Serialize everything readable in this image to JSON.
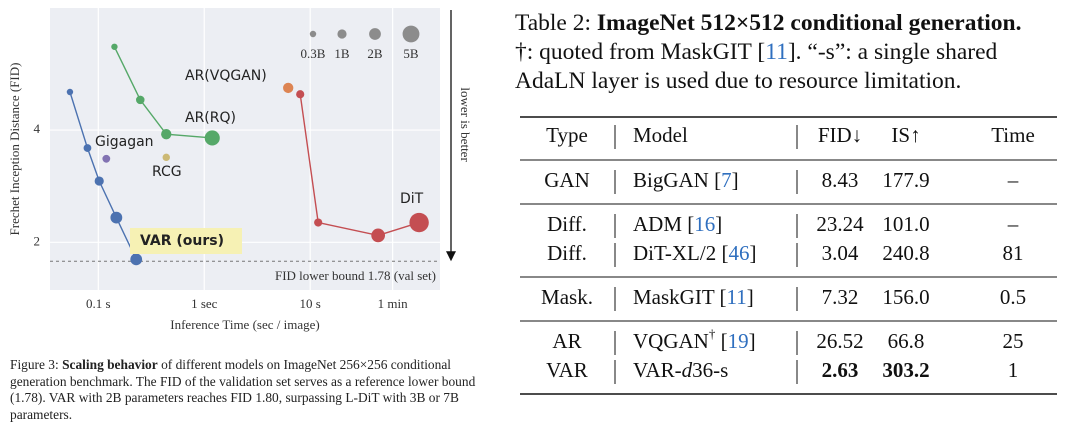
{
  "chart_data": {
    "type": "bubble",
    "x_label": "Inference Time (sec / image)",
    "y_label": "Frechet Inception Distance (FID)",
    "xscale": "log",
    "yscale": "log",
    "xlim": [
      0.035,
      168
    ],
    "ylim": [
      1.49,
      8.5
    ],
    "xticks": [
      {
        "value": 0.1,
        "label": "0.1 s"
      },
      {
        "value": 1,
        "label": "1 sec"
      },
      {
        "value": 10,
        "label": "10 s"
      },
      {
        "value": 60,
        "label": "1 min"
      }
    ],
    "yticks": [
      2,
      4
    ],
    "grid": true,
    "series": [
      {
        "name": "VAR (ours)",
        "color": "#4c72b0",
        "x": [
          0.054,
          0.079,
          0.102,
          0.148,
          0.228
        ],
        "values": [
          5.06,
          3.58,
          2.92,
          2.33,
          1.8
        ],
        "sizes": [
          0.3,
          0.6,
          1.0,
          2.0,
          2.0
        ]
      },
      {
        "name": "AR(RQ)",
        "color": "#55a868",
        "x": [
          0.142,
          0.249,
          0.438,
          1.19
        ],
        "values": [
          6.69,
          4.82,
          3.9,
          3.81
        ],
        "sizes": [
          0.3,
          0.8,
          1.4,
          3.8
        ]
      },
      {
        "name": "AR(VQGAN)",
        "color": "#dd8452",
        "x": [
          6.2
        ],
        "values": [
          5.19
        ],
        "sizes": [
          1.4
        ]
      },
      {
        "name": "DiT",
        "color": "#c44e52",
        "x": [
          8.05,
          11.9,
          43.8,
          106.7
        ],
        "values": [
          4.99,
          2.26,
          2.087,
          2.26
        ],
        "sizes": [
          0.7,
          0.7,
          3.0,
          7.0
        ]
      },
      {
        "name": "Gigagan",
        "color": "#8172b2",
        "x": [
          0.119
        ],
        "values": [
          3.35
        ],
        "sizes": [
          0.6
        ]
      },
      {
        "name": "RCG",
        "color": "#ccb974",
        "x": [
          0.438
        ],
        "values": [
          3.38
        ],
        "sizes": [
          0.5
        ]
      }
    ],
    "size_legend": [
      {
        "value": 0.3,
        "label": "0.3B"
      },
      {
        "value": 1,
        "label": "1B"
      },
      {
        "value": 2,
        "label": "2B"
      },
      {
        "value": 5,
        "label": "5B"
      }
    ],
    "hline": {
      "value": 1.78,
      "label": "FID lower bound 1.78 (val set)"
    },
    "arrow_label": "lower is better"
  },
  "caption": {
    "label": "Figure 3:",
    "bold": "Scaling behavior",
    "text": "of different models on ImageNet 256×256 conditional generation benchmark. The FID of the validation set serves as a reference lower bound (1.78). VAR with 2B parameters reaches FID 1.80, surpassing L-DiT with 3B or 7B parameters."
  },
  "table": {
    "caption": {
      "label": "Table 2:",
      "title": "ImageNet 512×512 conditional generation.",
      "note": "†: quoted from MaskGIT [11]. “-s”: a single shared AdaLN layer is used due to resource limitation."
    },
    "headers": [
      "Type",
      "Model",
      "FID↓",
      "IS↑",
      "Time"
    ],
    "groups": [
      {
        "rows": [
          {
            "cells": [
              "GAN",
              "BigGAN [7]",
              "8.43",
              "177.9",
              "–"
            ]
          }
        ]
      },
      {
        "rows": [
          {
            "cells": [
              "Diff.",
              "ADM [16]",
              "23.24",
              "101.0",
              "–"
            ]
          },
          {
            "cells": [
              "Diff.",
              "DiT-XL/2 [46]",
              "3.04",
              "240.8",
              "81"
            ]
          }
        ]
      },
      {
        "rows": [
          {
            "cells": [
              "Mask.",
              "MaskGIT [11]",
              "7.32",
              "156.0",
              "0.5"
            ]
          }
        ]
      },
      {
        "rows": [
          {
            "cells": [
              "AR",
              "VQGAN† [19]",
              "26.52",
              "66.8",
              "25"
            ]
          },
          {
            "cells": [
              "VAR",
              "VAR-d36-s",
              "2.63",
              "303.2",
              "1"
            ],
            "bold": [
              2,
              3
            ]
          }
        ]
      }
    ]
  }
}
